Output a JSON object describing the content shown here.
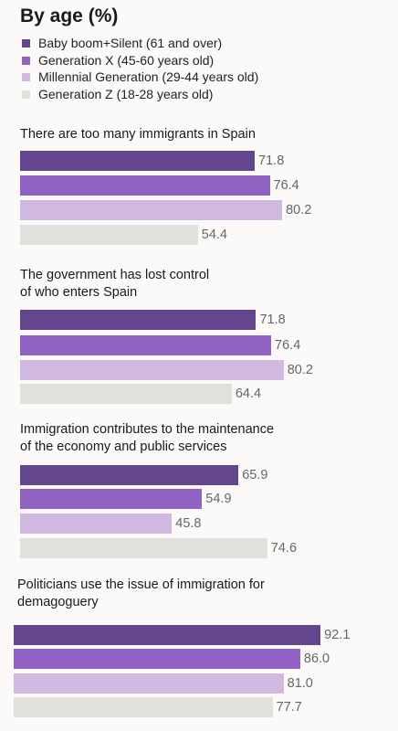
{
  "chart_data": {
    "type": "bar",
    "orientation": "horizontal",
    "title": "By age (%)",
    "series": [
      {
        "name": "Baby boom+Silent (61 and over)",
        "color": "#64468f"
      },
      {
        "name": "Generation X (45-60 years old)",
        "color": "#9062c3"
      },
      {
        "name": "Millennial Generation (29-44 years old)",
        "color": "#d1b8e0"
      },
      {
        "name": "Generation Z (18-28 years old)",
        "color": "#e0e0dc"
      }
    ],
    "categories": [
      "There are too many immigrants in Spain",
      "The government has lost control\nof who enters Spain",
      "Immigration contributes to the maintenance\nof the economy and public services",
      "Politicians use the issue of immigration for\ndemagoguery"
    ],
    "panels": [
      {
        "label": "There are too many immigrants in Spain",
        "values": [
          71.8,
          76.4,
          80.2,
          54.4
        ]
      },
      {
        "label": "The government has lost control of who enters Spain",
        "values": [
          71.8,
          76.4,
          80.2,
          64.4
        ]
      },
      {
        "label": "Immigration contributes to the maintenance of the economy and public services",
        "values": [
          65.9,
          54.9,
          45.8,
          74.6
        ]
      },
      {
        "label": "Politicians use the issue of immigration for demagoguery",
        "values": [
          92.1,
          86.0,
          81.0,
          77.7
        ]
      }
    ],
    "value_labels": [
      [
        "71.8",
        "76.4",
        "80.2",
        "54.4"
      ],
      [
        "71.8",
        "76.4",
        "80.2",
        "64.4"
      ],
      [
        "65.9",
        "54.9",
        "45.8",
        "74.6"
      ],
      [
        "92.1",
        "86.0",
        "81.0",
        "77.7"
      ]
    ],
    "xlabel": "",
    "ylabel": "",
    "xlim": [
      0,
      100
    ],
    "legend_position": "top-left",
    "grid": false
  }
}
